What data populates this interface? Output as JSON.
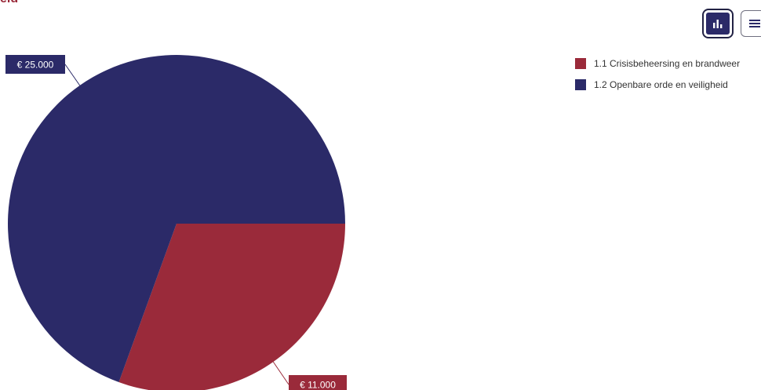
{
  "header": {
    "title_fragment": "eid"
  },
  "toolbar": {
    "chart_view_icon": "bar-chart-icon",
    "table_view_icon": "list-icon",
    "active": "chart"
  },
  "colors": {
    "accent": "#9a2a3a",
    "navy": "#2b2a68"
  },
  "chart_data": {
    "type": "pie",
    "categories": [
      "1.1 Crisisbeheersing en brandweer",
      "1.2 Openbare orde en veiligheid"
    ],
    "values": [
      11000,
      25000
    ],
    "labels": [
      "€ 11.000",
      "€ 25.000"
    ],
    "colors": [
      "#9a2a3a",
      "#2b2a68"
    ],
    "legend": "top-right"
  }
}
